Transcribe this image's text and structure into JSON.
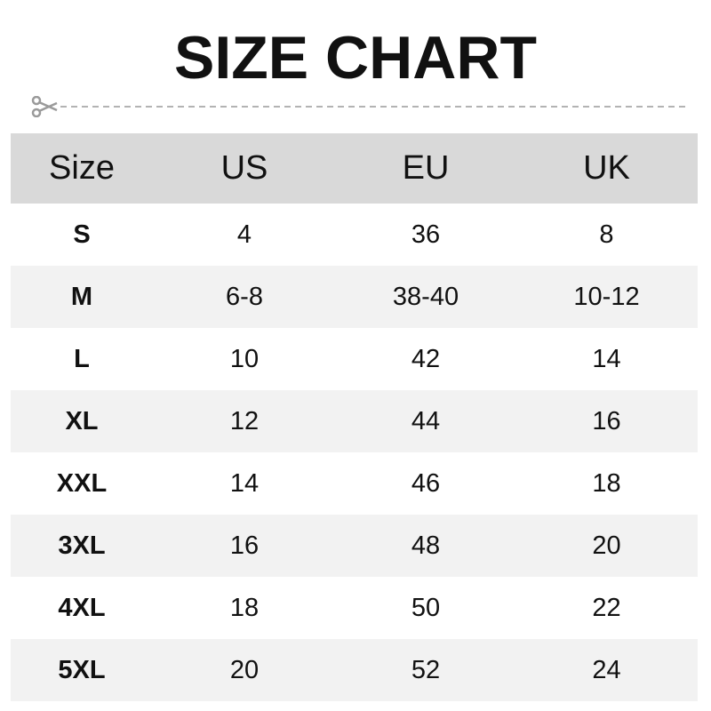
{
  "title": "SIZE CHART",
  "icons": {
    "cut_line": "scissors-icon"
  },
  "colors": {
    "header_bg": "#d9d9d9",
    "alt_row_bg": "#f2f2f2",
    "text": "#111111"
  },
  "chart_data": {
    "type": "table",
    "columns": [
      "Size",
      "US",
      "EU",
      "UK"
    ],
    "rows": [
      [
        "S",
        "4",
        "36",
        "8"
      ],
      [
        "M",
        "6-8",
        "38-40",
        "10-12"
      ],
      [
        "L",
        "10",
        "42",
        "14"
      ],
      [
        "XL",
        "12",
        "44",
        "16"
      ],
      [
        "XXL",
        "14",
        "46",
        "18"
      ],
      [
        "3XL",
        "16",
        "48",
        "20"
      ],
      [
        "4XL",
        "18",
        "50",
        "22"
      ],
      [
        "5XL",
        "20",
        "52",
        "24"
      ]
    ]
  }
}
